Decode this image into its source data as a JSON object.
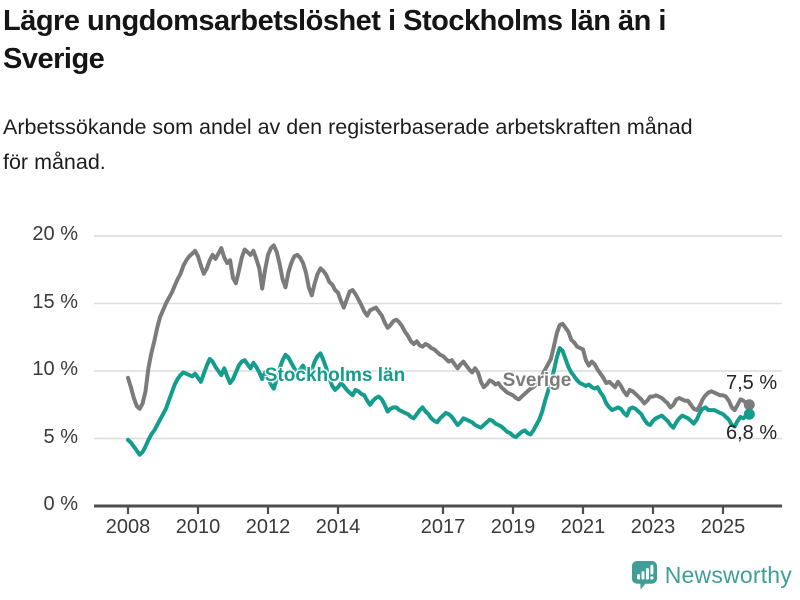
{
  "header": {
    "title_lines": [
      "Lägre ungdomsarbetslöshet i Stockholms län än i",
      "Sverige"
    ],
    "subtitle_lines": [
      "Arbetssökande som andel av den registerbaserade arbetskraften månad",
      "för månad."
    ]
  },
  "chart_data": {
    "type": "line",
    "title": "Lägre ungdomsarbetslöshet i Stockholms län än i Sverige",
    "subtitle": "Arbetssökande som andel av den registerbaserade arbetskraften månad för månad.",
    "x_start_year": 2008,
    "x_step_months": 1,
    "x_end": "2025-10",
    "ylim": [
      0,
      21
    ],
    "grid": true,
    "yticks": [
      0,
      5,
      10,
      15,
      20
    ],
    "ytick_labels": [
      "0 %",
      "5 %",
      "10 %",
      "15 %",
      "20 %"
    ],
    "xticks": [
      2008,
      2010,
      2012,
      2014,
      2017,
      2019,
      2021,
      2023,
      2025
    ],
    "xtick_labels": [
      "2008",
      "2010",
      "2012",
      "2014",
      "2017",
      "2019",
      "2021",
      "2023",
      "2025"
    ],
    "colors": {
      "sverige": "#7B7B7B",
      "stockholm": "#149C8C",
      "grid": "#DCDCDC",
      "axis": "#4D4D4D"
    },
    "series": [
      {
        "name": "Sverige",
        "color": "#7B7B7B",
        "end_label": "7,5 %",
        "end_value": 7.5,
        "values": [
          9.5,
          8.8,
          8.0,
          7.4,
          7.2,
          7.6,
          8.5,
          10.2,
          11.3,
          12.2,
          13.2,
          14.0,
          14.5,
          15.0,
          15.4,
          15.8,
          16.3,
          16.8,
          17.2,
          17.8,
          18.2,
          18.5,
          18.7,
          18.9,
          18.5,
          17.8,
          17.2,
          17.6,
          18.2,
          18.6,
          18.3,
          18.7,
          19.1,
          18.4,
          18.0,
          18.2,
          16.9,
          16.5,
          17.4,
          18.4,
          19.0,
          18.8,
          18.6,
          18.9,
          18.3,
          17.6,
          16.1,
          17.5,
          18.6,
          19.1,
          19.3,
          18.8,
          17.9,
          16.8,
          16.2,
          17.3,
          18.0,
          18.5,
          18.6,
          18.4,
          18.0,
          17.3,
          16.2,
          15.6,
          16.5,
          17.2,
          17.6,
          17.4,
          17.1,
          16.6,
          16.4,
          16.0,
          15.8,
          15.2,
          14.7,
          15.3,
          15.9,
          16.0,
          15.7,
          15.3,
          14.9,
          14.4,
          14.1,
          14.5,
          14.6,
          14.7,
          14.4,
          14.1,
          13.6,
          13.2,
          13.4,
          13.7,
          13.8,
          13.6,
          13.3,
          12.9,
          12.6,
          12.2,
          12.0,
          12.2,
          11.9,
          11.8,
          12.0,
          11.9,
          11.7,
          11.6,
          11.4,
          11.2,
          11.1,
          10.9,
          10.7,
          10.8,
          10.5,
          10.2,
          10.5,
          10.7,
          10.4,
          10.1,
          9.9,
          10.2,
          9.9,
          9.2,
          8.8,
          9.0,
          9.3,
          9.2,
          9.0,
          9.1,
          8.8,
          8.6,
          8.4,
          8.3,
          8.2,
          8.0,
          7.9,
          8.1,
          8.3,
          8.5,
          8.7,
          8.8,
          9.0,
          9.3,
          9.7,
          10.1,
          10.5,
          10.9,
          11.8,
          12.8,
          13.4,
          13.5,
          13.2,
          12.9,
          12.3,
          12.1,
          11.8,
          11.7,
          11.6,
          10.8,
          10.4,
          10.7,
          10.5,
          10.1,
          9.8,
          9.5,
          9.1,
          9.2,
          9.0,
          8.8,
          9.2,
          8.9,
          8.5,
          8.2,
          8.6,
          8.5,
          8.3,
          8.1,
          7.9,
          7.6,
          7.8,
          8.1,
          8.1,
          8.2,
          8.1,
          8.0,
          7.8,
          7.6,
          7.3,
          7.5,
          7.9,
          8.0,
          7.9,
          7.8,
          7.8,
          7.5,
          7.2,
          7.1,
          7.4,
          7.9,
          8.2,
          8.4,
          8.5,
          8.4,
          8.3,
          8.2,
          8.2,
          8.1,
          7.8,
          7.3,
          7.1,
          7.5,
          7.9,
          7.8,
          7.6,
          7.5
        ]
      },
      {
        "name": "Stockholms län",
        "color": "#149C8C",
        "end_label": "6,8 %",
        "end_value": 6.8,
        "values": [
          4.9,
          4.7,
          4.4,
          4.1,
          3.8,
          4.0,
          4.4,
          4.9,
          5.3,
          5.6,
          6.0,
          6.4,
          6.8,
          7.2,
          7.8,
          8.4,
          9.0,
          9.4,
          9.7,
          9.9,
          9.8,
          9.7,
          9.6,
          9.8,
          9.5,
          9.2,
          9.8,
          10.4,
          10.9,
          10.7,
          10.3,
          10.0,
          9.7,
          10.2,
          9.6,
          9.1,
          9.4,
          9.9,
          10.4,
          10.7,
          10.8,
          10.5,
          10.2,
          10.6,
          10.3,
          9.9,
          9.4,
          9.9,
          9.5,
          9.0,
          8.7,
          9.4,
          10.2,
          10.8,
          11.2,
          11.0,
          10.6,
          10.2,
          9.8,
          10.1,
          10.4,
          10.0,
          9.6,
          10.1,
          10.7,
          11.1,
          11.3,
          10.8,
          10.2,
          9.5,
          8.9,
          8.6,
          8.8,
          9.1,
          8.9,
          8.6,
          8.4,
          8.2,
          8.6,
          8.5,
          8.3,
          8.2,
          7.8,
          7.5,
          7.8,
          8.0,
          8.1,
          7.9,
          7.5,
          7.0,
          7.2,
          7.3,
          7.3,
          7.1,
          7.0,
          6.9,
          6.8,
          6.6,
          6.5,
          6.8,
          7.1,
          7.3,
          7.0,
          6.8,
          6.5,
          6.3,
          6.2,
          6.5,
          6.7,
          6.9,
          6.8,
          6.6,
          6.3,
          6.0,
          6.2,
          6.5,
          6.4,
          6.3,
          6.2,
          6.0,
          5.9,
          5.8,
          6.0,
          6.2,
          6.4,
          6.3,
          6.1,
          6.0,
          5.9,
          5.7,
          5.5,
          5.4,
          5.2,
          5.1,
          5.3,
          5.5,
          5.6,
          5.4,
          5.3,
          5.6,
          6.0,
          6.4,
          7.0,
          7.8,
          8.5,
          9.2,
          10.0,
          11.0,
          11.7,
          11.5,
          10.9,
          10.3,
          9.9,
          9.6,
          9.3,
          9.1,
          9.0,
          8.9,
          9.0,
          8.8,
          8.7,
          8.8,
          8.4,
          8.1,
          7.6,
          7.3,
          7.1,
          7.2,
          7.3,
          7.2,
          6.9,
          6.7,
          7.2,
          7.3,
          7.2,
          7.0,
          6.8,
          6.4,
          6.1,
          6.0,
          6.3,
          6.5,
          6.6,
          6.7,
          6.5,
          6.3,
          6.0,
          5.8,
          6.2,
          6.5,
          6.7,
          6.6,
          6.5,
          6.3,
          6.1,
          6.4,
          6.9,
          7.2,
          7.3,
          7.1,
          7.1,
          7.1,
          7.0,
          6.9,
          6.8,
          6.6,
          6.4,
          6.0,
          5.9,
          6.3,
          6.6,
          6.5,
          6.7,
          6.8
        ]
      }
    ],
    "legend_position": "on-chart"
  },
  "footer": {
    "brand": "Newsworthy",
    "brand_color": "#3F9E98"
  }
}
